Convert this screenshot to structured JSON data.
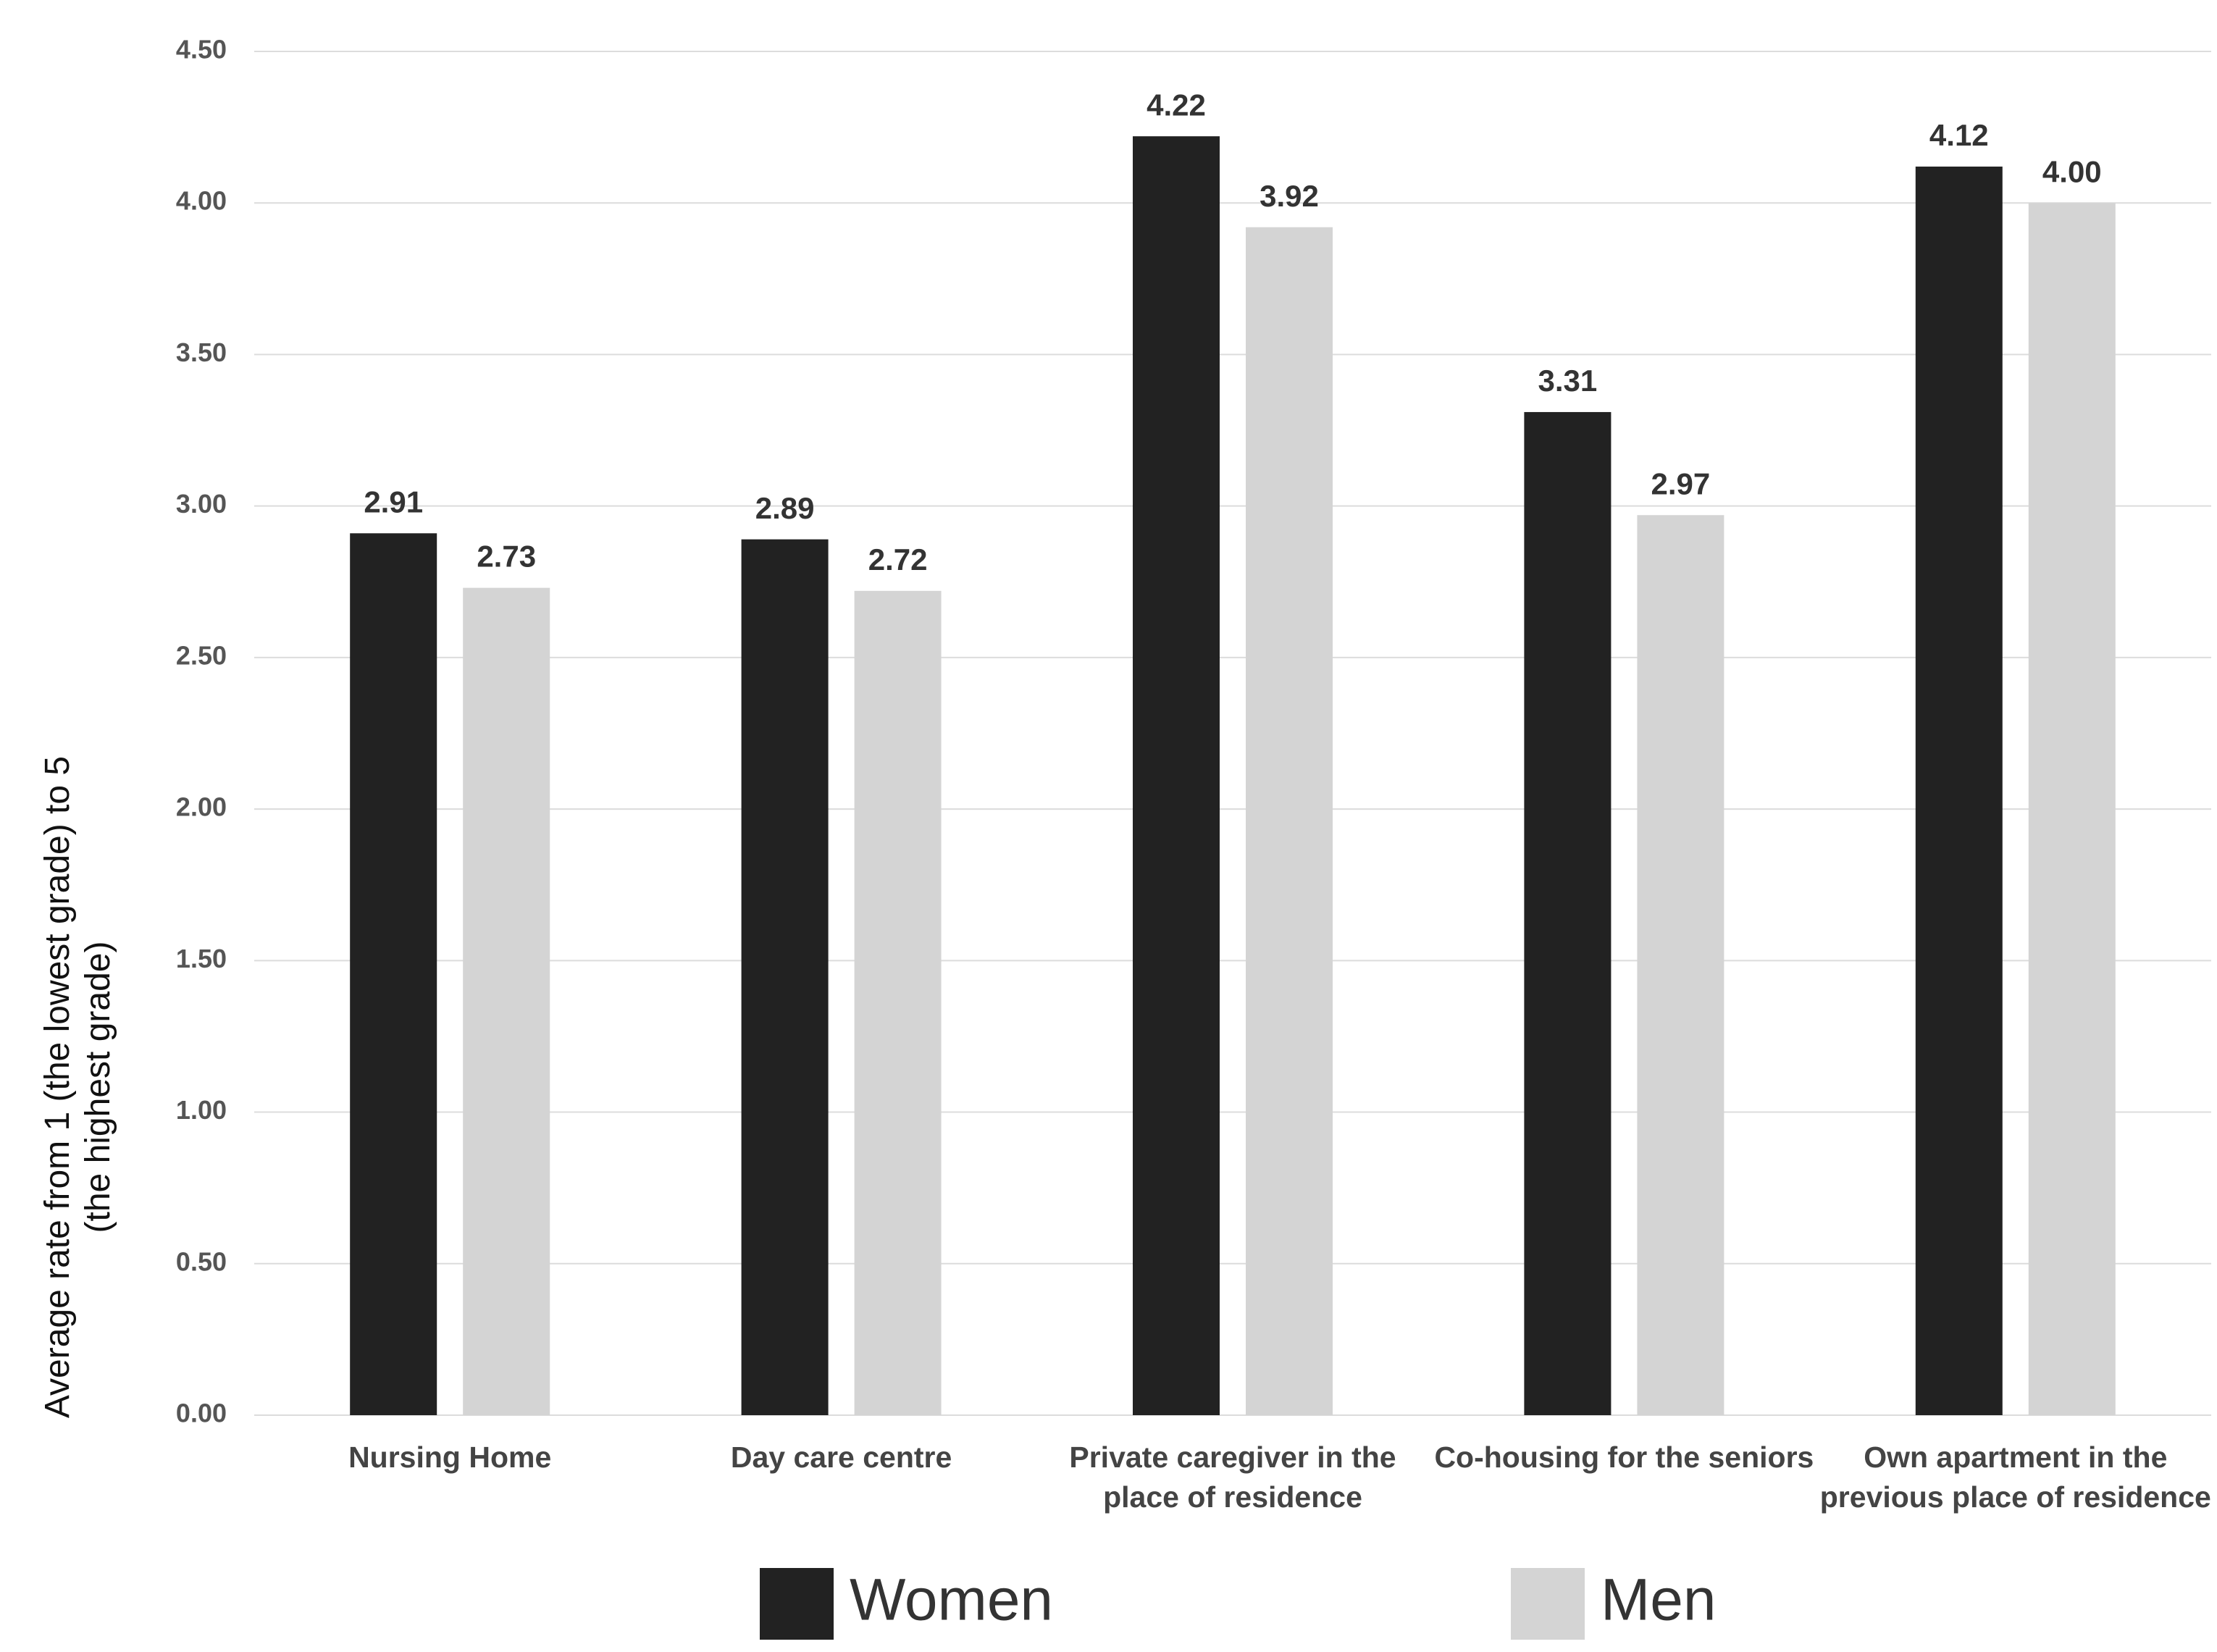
{
  "chart_data": {
    "type": "bar",
    "y_label": "Average rate from 1 (the lowest grade) to 5 (the highest grade)",
    "categories": [
      "Nursing Home",
      "Day care centre",
      "Private caregiver in the place of residence",
      "Co-housing for the seniors",
      "Own apartment in the previous place of residence"
    ],
    "series": [
      {
        "name": "Women",
        "color": "#222222",
        "values": [
          2.91,
          2.89,
          4.22,
          3.31,
          4.12
        ],
        "value_labels": [
          "2.91",
          "2.89",
          "4.22",
          "3.31",
          "4.12"
        ]
      },
      {
        "name": "Men",
        "color": "#d4d4d4",
        "values": [
          2.73,
          2.72,
          3.92,
          2.97,
          4.0
        ],
        "value_labels": [
          "2.73",
          "2.72",
          "3.92",
          "2.97",
          "4.00"
        ]
      }
    ],
    "ylim": [
      0,
      4.5
    ],
    "yticks": [
      {
        "value": 0,
        "label": "0.00"
      },
      {
        "value": 0.5,
        "label": "0.50"
      },
      {
        "value": 1,
        "label": "1.00"
      },
      {
        "value": 1.5,
        "label": "1.50"
      },
      {
        "value": 2,
        "label": "2.00"
      },
      {
        "value": 2.5,
        "label": "2.50"
      },
      {
        "value": 3,
        "label": "3.00"
      },
      {
        "value": 3.5,
        "label": "3.50"
      },
      {
        "value": 4,
        "label": "4.00"
      },
      {
        "value": 4.5,
        "label": "4.50"
      }
    ],
    "grid": true,
    "legend": "bottom"
  }
}
